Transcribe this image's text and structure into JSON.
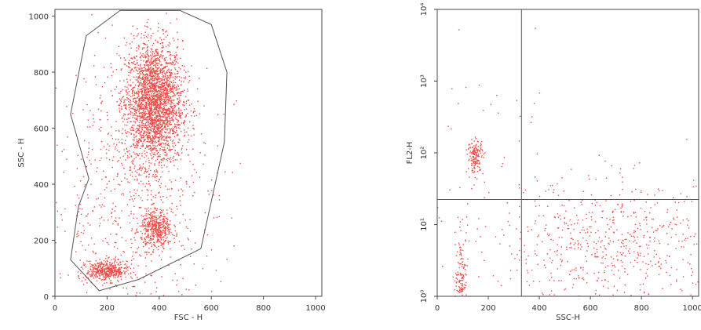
{
  "colors": {
    "events": "#ef4a45",
    "axis": "#444444",
    "gate": "#555555",
    "background": "#ffffff"
  },
  "chart_data": [
    {
      "type": "scatter",
      "title": "",
      "xlabel": "FSC - H",
      "ylabel": "SSC - H",
      "xlim": [
        0,
        1024
      ],
      "ylim": [
        0,
        1024
      ],
      "xticks": [
        "0",
        "200",
        "400",
        "600",
        "800",
        "1000"
      ],
      "yticks": [
        "0",
        "200",
        "400",
        "600",
        "800",
        "1000"
      ],
      "grid": false,
      "populations": [
        {
          "center": [
            380,
            690
          ],
          "spread": [
            55,
            110
          ],
          "count": 2600
        },
        {
          "center": [
            390,
            240
          ],
          "spread": [
            30,
            35
          ],
          "count": 450
        },
        {
          "center": [
            200,
            90
          ],
          "spread": [
            40,
            18
          ],
          "count": 450
        },
        {
          "center": [
            300,
            350
          ],
          "spread": [
            160,
            250
          ],
          "count": 700
        }
      ],
      "gate_polygon": [
        [
          250,
          1020
        ],
        [
          120,
          930
        ],
        [
          60,
          650
        ],
        [
          130,
          420
        ],
        [
          90,
          320
        ],
        [
          60,
          130
        ],
        [
          170,
          20
        ],
        [
          320,
          60
        ],
        [
          560,
          170
        ],
        [
          650,
          550
        ],
        [
          660,
          800
        ],
        [
          600,
          970
        ],
        [
          480,
          1020
        ]
      ]
    },
    {
      "type": "scatter",
      "title": "",
      "xlabel": "SSC-H",
      "ylabel": "FL2-H",
      "xlim": [
        0,
        1024
      ],
      "ylim": [
        0,
        4
      ],
      "yscale": "log",
      "xticks": [
        "0",
        "200",
        "400",
        "600",
        "800",
        "1000"
      ],
      "yticks": [
        "10⁰",
        "10¹",
        "10²",
        "10³",
        "10⁴"
      ],
      "grid": false,
      "quadrant_divider": {
        "x": 330,
        "y": 1.35
      },
      "populations": [
        {
          "center": [
            150,
            1.95
          ],
          "spread": [
            15,
            0.12
          ],
          "count": 160
        },
        {
          "center": [
            95,
            0.25
          ],
          "spread": [
            12,
            0.3
          ],
          "count": 160
        },
        {
          "center": [
            700,
            0.7
          ],
          "spread": [
            230,
            0.45
          ],
          "count": 650
        },
        {
          "center": [
            250,
            1.5
          ],
          "spread": [
            150,
            0.9
          ],
          "count": 60
        }
      ]
    }
  ]
}
